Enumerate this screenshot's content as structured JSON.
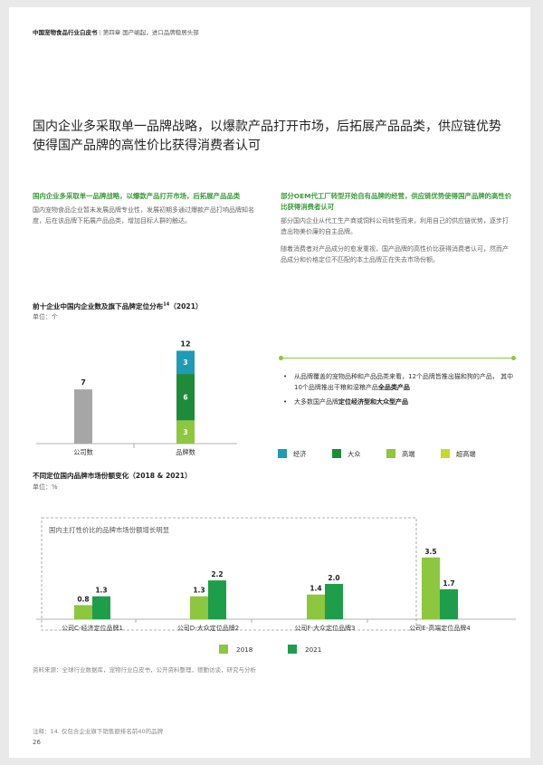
{
  "header": {
    "report": "中国宠物食品行业白皮书",
    "separator": "|",
    "chapter": "第四章 国产崛起，进口品牌稳居头部"
  },
  "title": "国内企业多采取单一品牌战略，以爆款产品打开市场，后拓展产品品类，供应链优势使得国产品牌的高性价比获得消费者认可",
  "left_column": {
    "heading": "国内企业多采取单一品牌战略，以爆款产品打开市场，后拓展产品品类",
    "body": "国内宠物食品企业暂未发展品牌专业性，发展初期多通过爆款产品打响品牌知名度，后在该品牌下拓展产品品类，增加目标人群的触达。"
  },
  "right_column": {
    "heading": "部分OEM代工厂转型开始自有品牌的经营，供应链优势使得国产品牌的高性价比获得消费者认可",
    "body1": "部分国内企业从代工生产商或饲料公司转型而来，利用自己的供应链优势，逐步打造出物美价廉的自主品牌。",
    "body2": "随着消费者对产品成分的愈发重视，国产品牌的高性价比获得消费者认可，然而产品成分和价格定位不匹配的本土品牌正在失去市场份额。"
  },
  "bullets": {
    "b1_pre": "从品牌覆盖的宠物品种和产品品类来看，12个品牌皆推出猫和狗的产品，  其中10个品牌推出干粮和湿粮产品",
    "b1_bold": "全品类产品",
    "b2_pre": "大多数国产品牌",
    "b2_bold": "定位经济型和大众型产品"
  },
  "colors": {
    "gray": "#a6a6a6",
    "economy": "#1f9bb6",
    "mass": "#1e8b3a",
    "highend": "#8dc63f",
    "superhigh": "#c5d82e",
    "y2018": "#8dc63f",
    "y2021": "#1e9e4a"
  },
  "chart1": {
    "title": "前十企业中国内企业数及旗下品牌定位分布",
    "superscript": "14",
    "year": "（2021）",
    "unit": "单位：个",
    "legend": [
      "经济",
      "大众",
      "高端",
      "超高端"
    ]
  },
  "chart2": {
    "title": "不同定位国内品牌市场份额变化（2018 & 2021）",
    "unit": "单位：%",
    "annotation": "国内主打性价比的品牌市场份额增长明显",
    "legend": [
      "2018",
      "2021"
    ]
  },
  "chart_data": [
    {
      "type": "bar",
      "title": "前十企业中国内企业数及旗下品牌定位分布（2021）",
      "categories": [
        "公司数",
        "品牌数"
      ],
      "totals": [
        7,
        12
      ],
      "series": [
        {
          "name": "公司数",
          "values": [
            7,
            null
          ]
        },
        {
          "name": "超高端",
          "values": [
            null,
            0
          ]
        },
        {
          "name": "高端",
          "values": [
            null,
            3
          ]
        },
        {
          "name": "大众",
          "values": [
            null,
            6
          ]
        },
        {
          "name": "经济",
          "values": [
            null,
            3
          ]
        }
      ],
      "ylim": [
        0,
        12
      ]
    },
    {
      "type": "bar",
      "title": "不同定位国内品牌市场份额变化（2018 & 2021）",
      "categories": [
        "公司C-经济定位品牌1",
        "公司D-大众定位品牌2",
        "公司F-大众定位品牌3",
        "公司E-高端定位品牌4"
      ],
      "series": [
        {
          "name": "2018",
          "values": [
            0.8,
            1.3,
            1.4,
            3.5
          ]
        },
        {
          "name": "2021",
          "values": [
            1.3,
            2.2,
            2.0,
            1.7
          ]
        }
      ],
      "ylim": [
        0,
        3.5
      ]
    }
  ],
  "source": "资料来源：全球行业数据库，宠物行业白皮书，公开资料整理，德勤访谈，研究与分析",
  "note": "注释：14. 仅包含企业旗下销售额排名前40的品牌",
  "page_number": "26"
}
